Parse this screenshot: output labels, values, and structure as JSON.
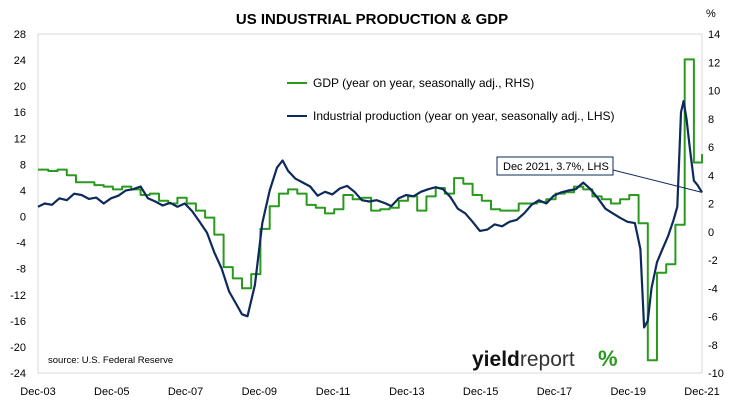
{
  "chart_data": {
    "type": "line",
    "title": "US INDUSTRIAL PRODUCTION & GDP",
    "right_unit": "%",
    "source": "source: U.S. Federal Reserve",
    "brand": {
      "bold": "yield",
      "light": "report",
      "mark": "%"
    },
    "x_ticks": [
      "Dec-03",
      "Dec-05",
      "Dec-07",
      "Dec-09",
      "Dec-11",
      "Dec-13",
      "Dec-15",
      "Dec-17",
      "Dec-19",
      "Dec-21"
    ],
    "x_range": [
      2003.92,
      2021.92
    ],
    "y_left": {
      "ticks": [
        28,
        24,
        20,
        16,
        12,
        8,
        4,
        0,
        -4,
        -8,
        -12,
        -16,
        -20,
        -24
      ],
      "range": [
        -24,
        28
      ]
    },
    "y_right": {
      "ticks": [
        14,
        12,
        10,
        8,
        6,
        4,
        2,
        0,
        -2,
        -4,
        -6,
        -8,
        -10
      ],
      "range": [
        -10,
        14
      ]
    },
    "annotation": {
      "text": "Dec 2021, 3.7%, LHS",
      "x": 2021.92,
      "y": 3.7,
      "axis": "left"
    },
    "legend_position": "top-right",
    "series": [
      {
        "name": "GDP (year on year, seasonally adj., RHS)",
        "axis": "right",
        "color": "#2a9a1e",
        "step": true,
        "points": [
          [
            2003.92,
            4.4
          ],
          [
            2004.2,
            4.3
          ],
          [
            2004.45,
            4.4
          ],
          [
            2004.7,
            4.0
          ],
          [
            2004.95,
            3.5
          ],
          [
            2005.2,
            3.5
          ],
          [
            2005.45,
            3.3
          ],
          [
            2005.7,
            3.2
          ],
          [
            2005.95,
            3.0
          ],
          [
            2006.2,
            3.2
          ],
          [
            2006.45,
            3.0
          ],
          [
            2006.7,
            2.6
          ],
          [
            2006.95,
            2.7
          ],
          [
            2007.2,
            2.2
          ],
          [
            2007.45,
            2.0
          ],
          [
            2007.7,
            2.4
          ],
          [
            2007.95,
            2.0
          ],
          [
            2008.2,
            1.5
          ],
          [
            2008.45,
            1.0
          ],
          [
            2008.7,
            -0.2
          ],
          [
            2008.95,
            -2.5
          ],
          [
            2009.2,
            -3.3
          ],
          [
            2009.45,
            -4.0
          ],
          [
            2009.7,
            -3.0
          ],
          [
            2009.95,
            0.2
          ],
          [
            2010.2,
            1.8
          ],
          [
            2010.45,
            2.7
          ],
          [
            2010.7,
            3.0
          ],
          [
            2010.95,
            2.7
          ],
          [
            2011.2,
            1.9
          ],
          [
            2011.45,
            1.7
          ],
          [
            2011.7,
            1.3
          ],
          [
            2011.95,
            1.6
          ],
          [
            2012.2,
            2.6
          ],
          [
            2012.45,
            2.3
          ],
          [
            2012.7,
            2.4
          ],
          [
            2012.95,
            1.5
          ],
          [
            2013.2,
            1.6
          ],
          [
            2013.45,
            1.7
          ],
          [
            2013.7,
            2.2
          ],
          [
            2013.95,
            2.5
          ],
          [
            2014.2,
            1.5
          ],
          [
            2014.45,
            2.5
          ],
          [
            2014.7,
            3.1
          ],
          [
            2014.95,
            2.7
          ],
          [
            2015.2,
            3.8
          ],
          [
            2015.45,
            3.4
          ],
          [
            2015.7,
            2.6
          ],
          [
            2015.95,
            2.2
          ],
          [
            2016.2,
            1.6
          ],
          [
            2016.45,
            1.5
          ],
          [
            2016.7,
            1.5
          ],
          [
            2016.95,
            2.0
          ],
          [
            2017.2,
            2.0
          ],
          [
            2017.45,
            2.1
          ],
          [
            2017.7,
            2.3
          ],
          [
            2017.95,
            2.7
          ],
          [
            2018.2,
            2.8
          ],
          [
            2018.45,
            3.2
          ],
          [
            2018.7,
            3.0
          ],
          [
            2018.95,
            2.5
          ],
          [
            2019.2,
            2.3
          ],
          [
            2019.45,
            2.0
          ],
          [
            2019.7,
            2.3
          ],
          [
            2019.95,
            2.6
          ],
          [
            2020.2,
            0.6
          ],
          [
            2020.45,
            -9.1
          ],
          [
            2020.7,
            -2.9
          ],
          [
            2020.95,
            -2.3
          ],
          [
            2021.2,
            0.5
          ],
          [
            2021.45,
            12.2
          ],
          [
            2021.7,
            4.9
          ],
          [
            2021.92,
            5.5
          ]
        ]
      },
      {
        "name": "Industrial production (year on year, seasonally adj., LHS)",
        "axis": "left",
        "color": "#0d2a5c",
        "step": false,
        "points": [
          [
            2003.92,
            1.5
          ],
          [
            2004.1,
            2.0
          ],
          [
            2004.3,
            1.8
          ],
          [
            2004.5,
            2.8
          ],
          [
            2004.7,
            2.5
          ],
          [
            2004.9,
            3.5
          ],
          [
            2005.1,
            3.3
          ],
          [
            2005.3,
            2.7
          ],
          [
            2005.5,
            2.9
          ],
          [
            2005.7,
            2.0
          ],
          [
            2005.9,
            2.8
          ],
          [
            2006.1,
            3.2
          ],
          [
            2006.3,
            4.0
          ],
          [
            2006.5,
            4.2
          ],
          [
            2006.7,
            4.6
          ],
          [
            2006.9,
            2.8
          ],
          [
            2007.1,
            2.3
          ],
          [
            2007.3,
            1.7
          ],
          [
            2007.5,
            2.1
          ],
          [
            2007.7,
            1.5
          ],
          [
            2007.9,
            2.0
          ],
          [
            2008.1,
            0.8
          ],
          [
            2008.3,
            -0.8
          ],
          [
            2008.5,
            -2.5
          ],
          [
            2008.7,
            -5.5
          ],
          [
            2008.9,
            -8.0
          ],
          [
            2009.1,
            -11.5
          ],
          [
            2009.3,
            -13.5
          ],
          [
            2009.45,
            -15.0
          ],
          [
            2009.6,
            -15.3
          ],
          [
            2009.8,
            -10.5
          ],
          [
            2010.0,
            -1.0
          ],
          [
            2010.2,
            4.0
          ],
          [
            2010.4,
            7.5
          ],
          [
            2010.55,
            8.6
          ],
          [
            2010.7,
            7.0
          ],
          [
            2010.9,
            5.8
          ],
          [
            2011.1,
            5.2
          ],
          [
            2011.3,
            4.6
          ],
          [
            2011.5,
            3.2
          ],
          [
            2011.7,
            3.8
          ],
          [
            2011.9,
            3.4
          ],
          [
            2012.1,
            4.3
          ],
          [
            2012.3,
            4.7
          ],
          [
            2012.5,
            3.8
          ],
          [
            2012.7,
            2.5
          ],
          [
            2012.9,
            2.3
          ],
          [
            2013.1,
            2.5
          ],
          [
            2013.3,
            2.1
          ],
          [
            2013.5,
            1.6
          ],
          [
            2013.7,
            2.8
          ],
          [
            2013.9,
            3.3
          ],
          [
            2014.1,
            3.1
          ],
          [
            2014.3,
            3.8
          ],
          [
            2014.5,
            4.2
          ],
          [
            2014.7,
            4.5
          ],
          [
            2014.9,
            4.2
          ],
          [
            2015.1,
            3.0
          ],
          [
            2015.3,
            1.2
          ],
          [
            2015.5,
            0.5
          ],
          [
            2015.7,
            -0.8
          ],
          [
            2015.9,
            -2.2
          ],
          [
            2016.1,
            -2.0
          ],
          [
            2016.3,
            -1.2
          ],
          [
            2016.5,
            -1.5
          ],
          [
            2016.7,
            -0.8
          ],
          [
            2016.9,
            -0.5
          ],
          [
            2017.1,
            0.5
          ],
          [
            2017.3,
            1.8
          ],
          [
            2017.5,
            2.5
          ],
          [
            2017.7,
            2.0
          ],
          [
            2017.9,
            3.2
          ],
          [
            2018.1,
            3.7
          ],
          [
            2018.3,
            4.0
          ],
          [
            2018.5,
            4.2
          ],
          [
            2018.7,
            5.2
          ],
          [
            2018.9,
            4.2
          ],
          [
            2019.1,
            2.8
          ],
          [
            2019.3,
            1.2
          ],
          [
            2019.5,
            0.5
          ],
          [
            2019.7,
            -0.2
          ],
          [
            2019.9,
            -0.8
          ],
          [
            2020.1,
            -1.0
          ],
          [
            2020.25,
            -5.0
          ],
          [
            2020.35,
            -17.0
          ],
          [
            2020.45,
            -16.0
          ],
          [
            2020.55,
            -11.0
          ],
          [
            2020.7,
            -7.0
          ],
          [
            2020.85,
            -5.0
          ],
          [
            2021.0,
            -3.0
          ],
          [
            2021.15,
            -0.5
          ],
          [
            2021.25,
            1.5
          ],
          [
            2021.35,
            16.0
          ],
          [
            2021.42,
            17.7
          ],
          [
            2021.5,
            15.0
          ],
          [
            2021.6,
            10.0
          ],
          [
            2021.7,
            5.5
          ],
          [
            2021.8,
            4.8
          ],
          [
            2021.92,
            3.7
          ]
        ]
      }
    ]
  }
}
